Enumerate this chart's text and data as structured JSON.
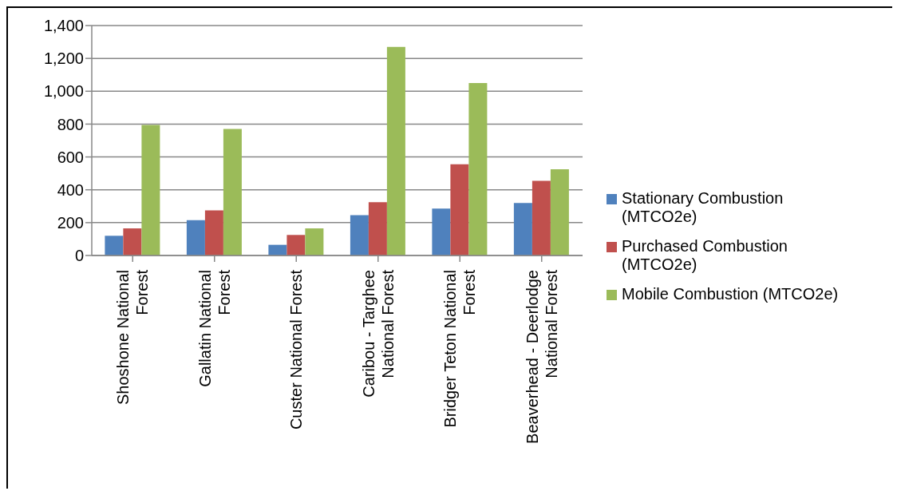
{
  "chart_data": {
    "type": "bar",
    "categories": [
      "Shoshone National Forest",
      "Gallatin National Forest",
      "Custer National Forest",
      "Caribou - Targhee National Forest",
      "Bridger Teton National Forest",
      "Beaverhead - Deerlodge National Forest"
    ],
    "series": [
      {
        "name": "Stationary Combustion (MTCO2e)",
        "color": "#4f81bd",
        "values": [
          120,
          215,
          65,
          245,
          285,
          320
        ]
      },
      {
        "name": "Purchased Combustion (MTCO2e)",
        "color": "#c0504d",
        "values": [
          165,
          275,
          125,
          325,
          555,
          455
        ]
      },
      {
        "name": "Mobile Combustion (MTCO2e)",
        "color": "#9bbb59",
        "values": [
          795,
          770,
          165,
          1270,
          1050,
          525
        ]
      }
    ],
    "ylim": [
      0,
      1400
    ],
    "yticks": [
      {
        "value": 0,
        "label": "0"
      },
      {
        "value": 200,
        "label": "200"
      },
      {
        "value": 400,
        "label": "400"
      },
      {
        "value": 600,
        "label": "600"
      },
      {
        "value": 800,
        "label": "800"
      },
      {
        "value": 1000,
        "label": "1,000"
      },
      {
        "value": 1200,
        "label": "1,200"
      },
      {
        "value": 1400,
        "label": "1,400"
      }
    ],
    "grid": "y",
    "legend": "right"
  }
}
